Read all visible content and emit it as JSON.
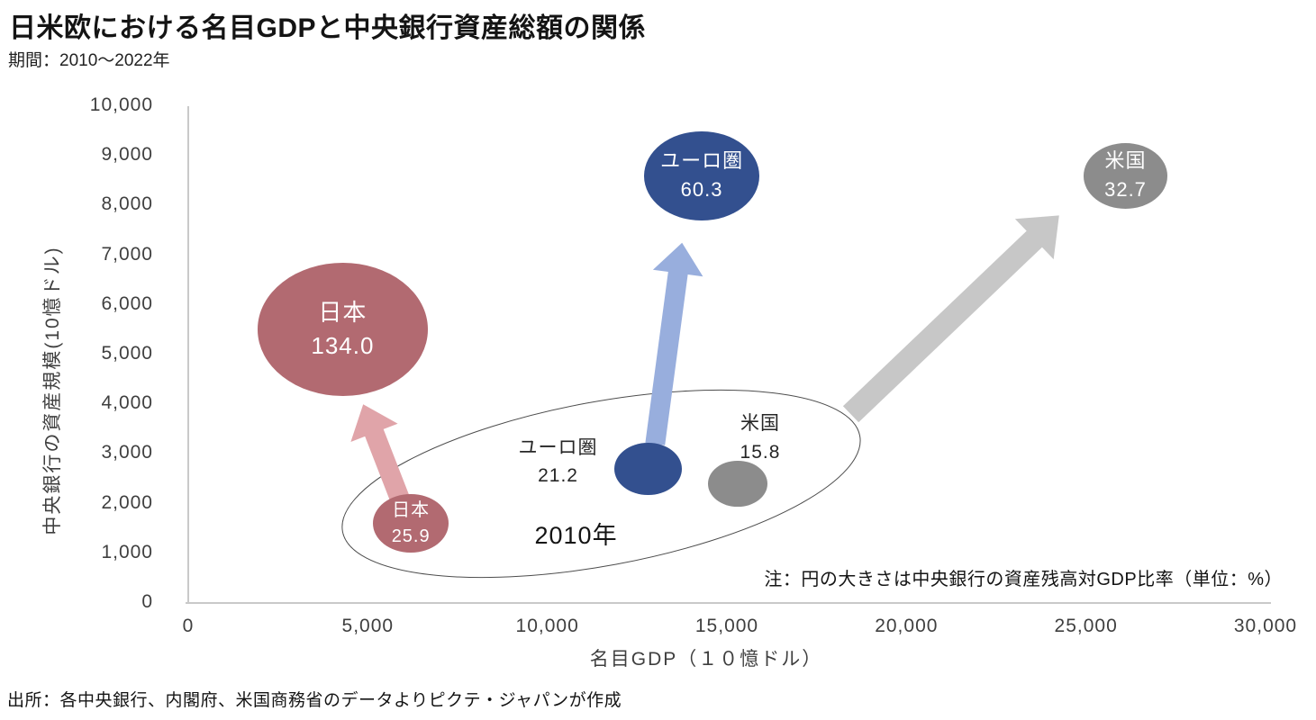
{
  "header": {
    "title": "日米欧における名目GDPと中央銀行資産総額の関係",
    "period": "期間：2010～2022年"
  },
  "chart_data": {
    "type": "bubble",
    "title": "日米欧における名目GDPと中央銀行資産総額の関係",
    "subtitle": "期間：2010～2022年",
    "x_axis": {
      "label": "名目GDP（１０憶ドル）",
      "min": 0,
      "max": 30000,
      "tick_values": [
        0,
        5000,
        10000,
        15000,
        20000,
        25000,
        30000
      ],
      "ticks": [
        "0",
        "5,000",
        "10,000",
        "15,000",
        "20,000",
        "25,000",
        "30,000"
      ]
    },
    "y_axis": {
      "label": "中央銀行の資産規模(10憶ドル)",
      "min": 0,
      "max": 10000,
      "tick_values": [
        0,
        1000,
        2000,
        3000,
        4000,
        5000,
        6000,
        7000,
        8000,
        9000,
        10000
      ],
      "ticks": [
        "0",
        "1,000",
        "2,000",
        "3,000",
        "4,000",
        "5,000",
        "6,000",
        "7,000",
        "8,000",
        "9,000",
        "10,000"
      ]
    },
    "bubble_note": "注：円の大きさは中央銀行の資産残高対GDP比率（単位：%）",
    "series": [
      {
        "key": "japan",
        "name": "日本",
        "color": "#b26a71",
        "arrow_color": "#e0a4a9",
        "points": [
          {
            "year": "2010",
            "gdp": 6200,
            "assets": 1600,
            "ratio": "25.9",
            "ratio_value": 25.9,
            "label_placement": "inside"
          },
          {
            "year": "2022",
            "gdp": 4300,
            "assets": 5500,
            "ratio": "134.0",
            "ratio_value": 134.0,
            "label_placement": "inside"
          }
        ]
      },
      {
        "key": "euro",
        "name": "ユーロ圏",
        "color": "#33508f",
        "arrow_color": "#98aedd",
        "points": [
          {
            "year": "2010",
            "gdp": 12800,
            "assets": 2700,
            "ratio": "21.2",
            "ratio_value": 21.2,
            "label_placement": "left"
          },
          {
            "year": "2022",
            "gdp": 14300,
            "assets": 8600,
            "ratio": "60.3",
            "ratio_value": 60.3,
            "label_placement": "inside"
          }
        ]
      },
      {
        "key": "us",
        "name": "米国",
        "color": "#8c8c8c",
        "arrow_color": "#c7c7c7",
        "points": [
          {
            "year": "2010",
            "gdp": 15300,
            "assets": 2400,
            "ratio": "15.8",
            "ratio_value": 15.8,
            "label_placement": "above"
          },
          {
            "year": "2022",
            "gdp": 26100,
            "assets": 8600,
            "ratio": "32.7",
            "ratio_value": 32.7,
            "label_placement": "inside"
          }
        ]
      }
    ],
    "arrows": [
      {
        "series": "japan",
        "from": {
          "gdp": 6000,
          "assets": 1900
        },
        "to": {
          "gdp": 4870,
          "assets": 4000
        },
        "size": "normal"
      },
      {
        "series": "euro",
        "from": {
          "gdp": 13000,
          "assets": 3200
        },
        "to": {
          "gdp": 13750,
          "assets": 7250
        },
        "size": "normal"
      },
      {
        "series": "us",
        "from": {
          "gdp": 18450,
          "assets": 3800
        },
        "to": {
          "gdp": 24250,
          "assets": 7800
        },
        "size": "large"
      }
    ],
    "group_annotation": {
      "label": "2010年",
      "center": {
        "gdp": 11500,
        "assets": 2400
      },
      "label_center": {
        "gdp": 10800,
        "assets": 1450
      }
    }
  },
  "footer": {
    "source": "出所：各中央銀行、内閣府、米国商務省のデータよりピクテ・ジャパンが作成"
  }
}
